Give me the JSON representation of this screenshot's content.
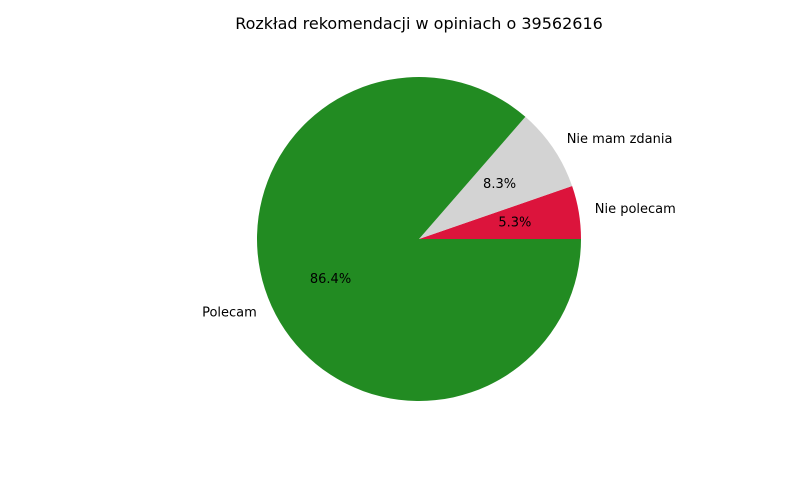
{
  "chart_data": {
    "type": "pie",
    "title": "Rozkład rekomendacji w opiniach o 39562616",
    "slices": [
      {
        "label": "Nie polecam",
        "value": 5.3,
        "pct_label": "5.3%",
        "color": "#dc143c"
      },
      {
        "label": "Nie mam zdania",
        "value": 8.3,
        "pct_label": "8.3%",
        "color": "#d3d3d3"
      },
      {
        "label": "Polecam",
        "value": 86.4,
        "pct_label": "86.4%",
        "color": "#228b22"
      }
    ],
    "start_angle_deg": 0,
    "direction": "counterclockwise"
  }
}
